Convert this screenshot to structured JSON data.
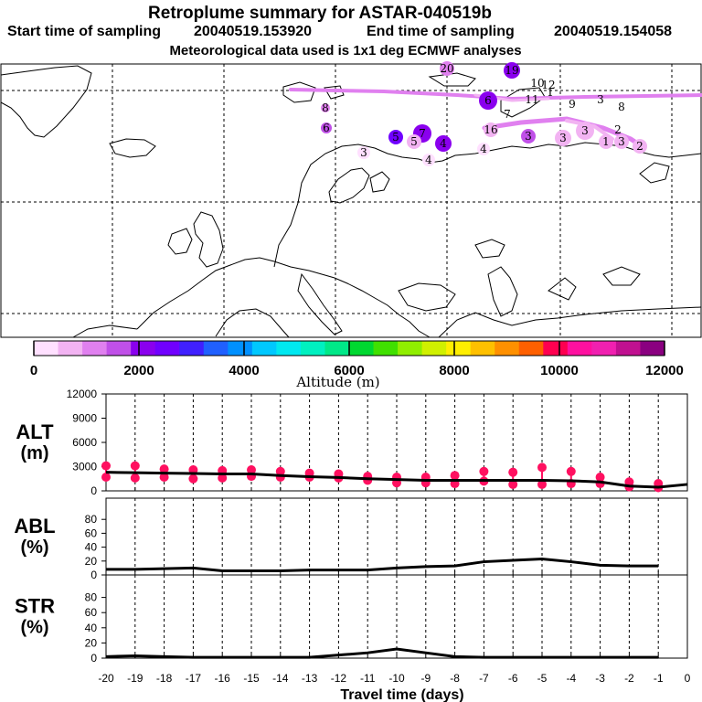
{
  "header": {
    "title": "Retroplume summary for ASTAR-040519b",
    "start_label": "Start time of sampling",
    "start_value": "20040519.153920",
    "end_label": "End time of sampling",
    "end_value": "20040519.154058",
    "met_line": "Meteorological data used is 1x1 deg ECMWF analyses"
  },
  "colorbar": {
    "label": "Altitude  (m)",
    "tick_labels": [
      "0",
      "2000",
      "4000",
      "6000",
      "8000",
      "10000",
      "12000"
    ],
    "range": [
      0,
      12000
    ],
    "colors": [
      "#ffe0ff",
      "#f2b3f2",
      "#e080ef",
      "#c050e8",
      "#8a00ee",
      "#7000ff",
      "#4020ff",
      "#2060ff",
      "#0090ff",
      "#00c8ff",
      "#00e8f0",
      "#00f0c0",
      "#00e888",
      "#00d830",
      "#40e000",
      "#90ee00",
      "#d0f000",
      "#ffee00",
      "#ffc000",
      "#ff9000",
      "#ff6000",
      "#ff0050",
      "#ff10a0",
      "#f020b0",
      "#c01090",
      "#8a0080"
    ]
  },
  "map": {
    "labels": [
      {
        "text": "20",
        "alt": 1200
      },
      {
        "text": "19",
        "alt": 1900
      },
      {
        "text": "10",
        "alt": 200
      },
      {
        "text": "12",
        "alt": 200
      },
      {
        "text": "1",
        "alt": 200
      },
      {
        "text": "11",
        "alt": 300
      },
      {
        "text": "9",
        "alt": 800
      },
      {
        "text": "8",
        "alt": 1000
      },
      {
        "text": "8",
        "alt": 300
      },
      {
        "text": "7",
        "alt": 500
      },
      {
        "text": "6",
        "alt": 2200
      },
      {
        "text": "6",
        "alt": 1500
      },
      {
        "text": "5",
        "alt": 2500
      },
      {
        "text": "7",
        "alt": 2200
      },
      {
        "text": "4",
        "alt": 2000
      },
      {
        "text": "5",
        "alt": 800
      },
      {
        "text": "4",
        "alt": 400
      },
      {
        "text": "16",
        "alt": 500
      },
      {
        "text": "3",
        "alt": 1500
      },
      {
        "text": "3",
        "alt": 800
      },
      {
        "text": "3",
        "alt": 600
      },
      {
        "text": "2",
        "alt": 700
      },
      {
        "text": "2",
        "alt": 900
      },
      {
        "text": "1",
        "alt": 800
      },
      {
        "text": "3",
        "alt": 500
      },
      {
        "text": "4",
        "alt": 300
      },
      {
        "text": "3",
        "alt": 300
      },
      {
        "text": "3",
        "alt": 200
      }
    ]
  },
  "chart_data": [
    {
      "type": "line",
      "panel": "ALT",
      "ylabel": "ALT (m)",
      "ylabel_top": "ALT",
      "ylabel_unit": "(m)",
      "ylim": [
        0,
        12000
      ],
      "yticks": [
        "0",
        "3000",
        "6000",
        "9000",
        "12000"
      ],
      "x": [
        -20,
        -19,
        -18,
        -17,
        -16,
        -15,
        -14,
        -13,
        -12,
        -11,
        -10,
        -9,
        -8,
        -7,
        -6,
        -5,
        -4,
        -3,
        -2,
        -1,
        0
      ],
      "mean": [
        2300,
        2250,
        2200,
        2150,
        2100,
        2100,
        1900,
        1750,
        1650,
        1500,
        1400,
        1300,
        1300,
        1300,
        1300,
        1300,
        1250,
        1100,
        600,
        450,
        800
      ],
      "points": [
        {
          "x": -20,
          "y": 3100
        },
        {
          "x": -20,
          "y": 1700
        },
        {
          "x": -19,
          "y": 3100
        },
        {
          "x": -19,
          "y": 1600
        },
        {
          "x": -18,
          "y": 2700
        },
        {
          "x": -18,
          "y": 1700
        },
        {
          "x": -17,
          "y": 2600
        },
        {
          "x": -17,
          "y": 1500
        },
        {
          "x": -16,
          "y": 2500
        },
        {
          "x": -16,
          "y": 1600
        },
        {
          "x": -15,
          "y": 2600
        },
        {
          "x": -15,
          "y": 1800
        },
        {
          "x": -14,
          "y": 2400
        },
        {
          "x": -14,
          "y": 1700
        },
        {
          "x": -13,
          "y": 2200
        },
        {
          "x": -13,
          "y": 1700
        },
        {
          "x": -12,
          "y": 2100
        },
        {
          "x": -12,
          "y": 1600
        },
        {
          "x": -11,
          "y": 1800
        },
        {
          "x": -11,
          "y": 1300
        },
        {
          "x": -10,
          "y": 1700
        },
        {
          "x": -10,
          "y": 1000
        },
        {
          "x": -9,
          "y": 1700
        },
        {
          "x": -9,
          "y": 1000
        },
        {
          "x": -8,
          "y": 1900
        },
        {
          "x": -8,
          "y": 900
        },
        {
          "x": -7,
          "y": 2400
        },
        {
          "x": -7,
          "y": 1200
        },
        {
          "x": -6,
          "y": 2300
        },
        {
          "x": -6,
          "y": 800
        },
        {
          "x": -5,
          "y": 2900
        },
        {
          "x": -5,
          "y": 800
        },
        {
          "x": -4,
          "y": 2400
        },
        {
          "x": -4,
          "y": 900
        },
        {
          "x": -3,
          "y": 1700
        },
        {
          "x": -3,
          "y": 900
        },
        {
          "x": -2,
          "y": 1100
        },
        {
          "x": -2,
          "y": 500
        },
        {
          "x": -1,
          "y": 900
        },
        {
          "x": -1,
          "y": 400
        }
      ]
    },
    {
      "type": "line",
      "panel": "ABL",
      "ylabel": "ABL (%)",
      "ylabel_top": "ABL",
      "ylabel_unit": "(%)",
      "ylim": [
        0,
        100
      ],
      "yticks": [
        "0",
        "20",
        "40",
        "60",
        "80"
      ],
      "x": [
        -20,
        -19,
        -18,
        -17,
        -16,
        -15,
        -14,
        -13,
        -12,
        -11,
        -10,
        -9,
        -8,
        -7,
        -6,
        -5,
        -4,
        -3,
        -2,
        -1
      ],
      "values": [
        8,
        8,
        9,
        10,
        6,
        6,
        6,
        7,
        7,
        7,
        10,
        12,
        13,
        19,
        21,
        23,
        19,
        14,
        13,
        13
      ]
    },
    {
      "type": "line",
      "panel": "STR",
      "ylabel": "STR (%)",
      "ylabel_top": "STR",
      "ylabel_unit": "(%)",
      "ylim": [
        0,
        100
      ],
      "yticks": [
        "0",
        "20",
        "40",
        "60",
        "80"
      ],
      "x": [
        -20,
        -19,
        -18,
        -17,
        -16,
        -15,
        -14,
        -13,
        -12,
        -11,
        -10,
        -9,
        -8,
        -7,
        -6,
        -5,
        -4,
        -3,
        -2,
        -1
      ],
      "values": [
        2,
        3,
        2,
        1,
        1,
        1,
        1,
        1,
        4,
        7,
        12,
        7,
        2,
        1,
        1,
        1,
        1,
        1,
        1,
        1
      ],
      "xlabel": "Travel time (days)",
      "xticks": [
        "-20",
        "-19",
        "-18",
        "-17",
        "-16",
        "-15",
        "-14",
        "-13",
        "-12",
        "-11",
        "-10",
        "-9",
        "-8",
        "-7",
        "-6",
        "-5",
        "-4",
        "-3",
        "-2",
        "-1",
        "0"
      ]
    }
  ]
}
